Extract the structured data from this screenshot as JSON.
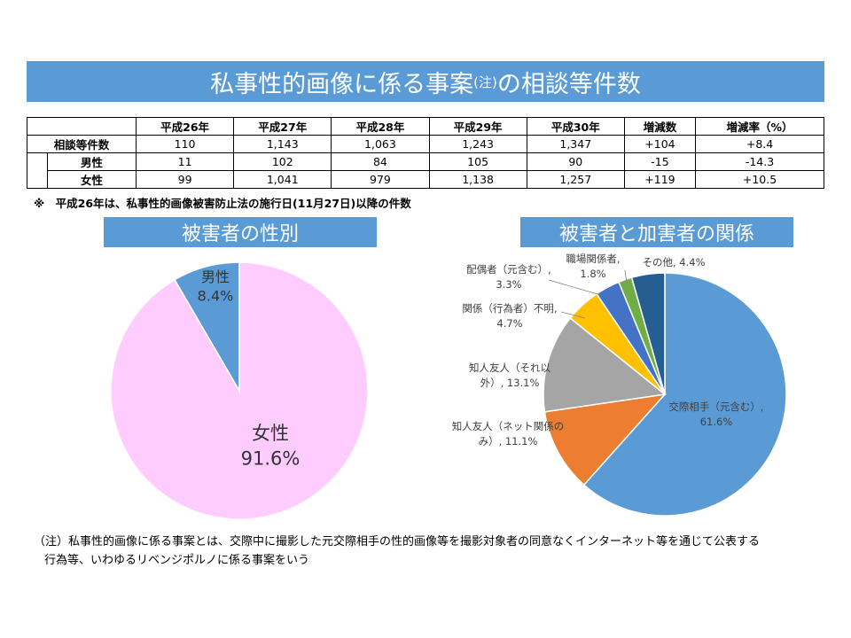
{
  "title": {
    "main1": "私事性的画像に係る事案",
    "note": "(注)",
    "main2": "の相談等件数"
  },
  "table": {
    "headers": [
      "",
      "平成26年",
      "平成27年",
      "平成28年",
      "平成29年",
      "平成30年",
      "増減数",
      "増減率（%）"
    ],
    "rows": [
      {
        "label": "相談等件数",
        "values": [
          "110",
          "1,143",
          "1,063",
          "1,243",
          "1,347",
          "+104",
          "+8.4"
        ]
      },
      {
        "label": "男性",
        "values": [
          "11",
          "102",
          "84",
          "105",
          "90",
          "-15",
          "-14.3"
        ]
      },
      {
        "label": "女性",
        "values": [
          "99",
          "1,041",
          "979",
          "1,138",
          "1,257",
          "+119",
          "+10.5"
        ]
      }
    ]
  },
  "footnote_top": "※　平成26年は、私事性的画像被害防止法の施行日(11月27日)以降の件数",
  "footnote_bottom": {
    "line1": "（注）私事性的画像に係る事案とは、交際中に撮影した元交際相手の性的画像等を撮影対象者の同意なくインターネット等を通じて公表する",
    "line2": "行為等、いわゆるリベンジポルノに係る事案をいう"
  },
  "chart_data": [
    {
      "type": "pie",
      "title": "被害者の性別",
      "slices": [
        {
          "label": "男性",
          "value": 8.4,
          "value_label": "8.4%",
          "color": "#5b9bd5"
        },
        {
          "label": "女性",
          "value": 91.6,
          "value_label": "91.6%",
          "color": "#ffccff"
        }
      ]
    },
    {
      "type": "pie",
      "title": "被害者と加害者の関係",
      "slices": [
        {
          "label": "交際相手（元含む）, 61.6%",
          "value": 61.6,
          "color": "#5b9bd5"
        },
        {
          "label": "知人友人（ネット関係のみ）, 11.1%",
          "value": 11.1,
          "color": "#ed7d31"
        },
        {
          "label": "知人友人（それ以外）, 13.1%",
          "value": 13.1,
          "color": "#a5a5a5"
        },
        {
          "label": "関係（行為者）不明, 4.7%",
          "value": 4.7,
          "color": "#ffc000"
        },
        {
          "label": "配偶者（元含む）, 3.3%",
          "value": 3.3,
          "color": "#4472c4"
        },
        {
          "label": "職場関係者, 1.8%",
          "value": 1.8,
          "color": "#70ad47"
        },
        {
          "label": "その他, 4.4%",
          "value": 4.4,
          "color": "#255e91"
        }
      ],
      "label_lines": [
        [
          "交際相手（元含む）,",
          "61.6%"
        ],
        [
          "知人友人（ネット関係の",
          "み）, 11.1%"
        ],
        [
          "知人友人（それ以",
          "外）, 13.1%"
        ],
        [
          "関係（行為者）不明,",
          "4.7%"
        ],
        [
          "配偶者（元含む）,",
          "3.3%"
        ],
        [
          "職場関係者,",
          "1.8%"
        ],
        [
          "その他, 4.4%"
        ]
      ]
    }
  ]
}
